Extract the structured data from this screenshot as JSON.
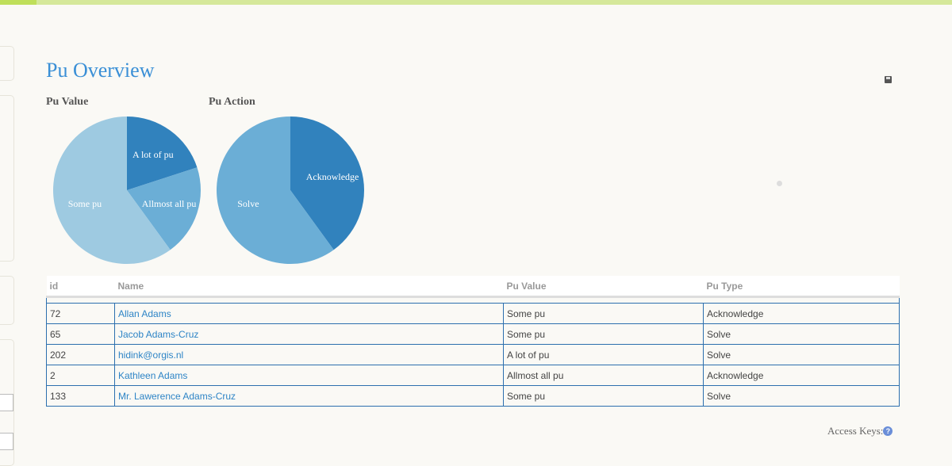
{
  "page": {
    "title": "Pu Overview"
  },
  "chart_data": [
    {
      "type": "pie",
      "title": "Pu Value",
      "categories": [
        "A lot of pu",
        "Allmost all pu",
        "Some pu"
      ],
      "values": [
        1,
        1,
        3
      ],
      "colors": [
        "#3182bd",
        "#6baed6",
        "#9ecae1"
      ]
    },
    {
      "type": "pie",
      "title": "Pu Action",
      "categories": [
        "Acknowledge",
        "Solve"
      ],
      "values": [
        2,
        3
      ],
      "colors": [
        "#3182bd",
        "#6baed6"
      ]
    }
  ],
  "table": {
    "headers": [
      "id",
      "Name",
      "Pu Value",
      "Pu Type"
    ],
    "rows": [
      [
        "72",
        "Allan Adams",
        "Some pu",
        "Acknowledge"
      ],
      [
        "65",
        "Jacob Adams-Cruz",
        "Some pu",
        "Solve"
      ],
      [
        "202",
        "hidink@orgis.nl",
        "A lot of pu",
        "Solve"
      ],
      [
        "2",
        "Kathleen Adams",
        "Allmost all pu",
        "Acknowledge"
      ],
      [
        "133",
        "Mr. Lawerence Adams-Cruz",
        "Some pu",
        "Solve"
      ]
    ]
  },
  "footer": {
    "access_keys": "Access Keys:",
    "help_icon": "?"
  },
  "icons": {
    "print": "print-icon",
    "help": "help-circle-icon"
  }
}
